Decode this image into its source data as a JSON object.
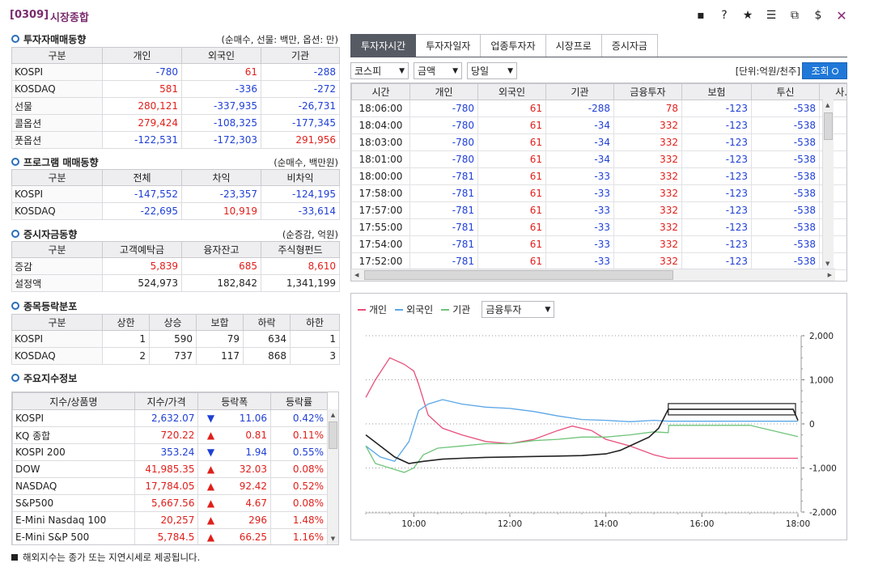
{
  "window": {
    "code": "[0309]",
    "title": "시장종합",
    "icons": [
      "chat-icon",
      "help-icon",
      "star-icon",
      "layout-icon",
      "copy-icon",
      "dollar-icon",
      "close-icon"
    ],
    "icon_glyphs": [
      "▪",
      "?",
      "★",
      "☰",
      "⧉",
      "$",
      "✕"
    ]
  },
  "investor": {
    "title": "투자자매매동향",
    "note": "(순매수, 선물: 백만, 옵션: 만)",
    "headers": [
      "구분",
      "개인",
      "외국인",
      "기관"
    ],
    "rows": [
      {
        "label": "KOSPI",
        "v": [
          "-780",
          "61",
          "-288"
        ]
      },
      {
        "label": "KOSDAQ",
        "v": [
          "581",
          "-336",
          "-272"
        ]
      },
      {
        "label": "선물",
        "v": [
          "280,121",
          "-337,935",
          "-26,731"
        ]
      },
      {
        "label": "콜옵션",
        "v": [
          "279,424",
          "-108,325",
          "-177,345"
        ]
      },
      {
        "label": "풋옵션",
        "v": [
          "-122,531",
          "-172,303",
          "291,956"
        ]
      }
    ]
  },
  "program": {
    "title": "프로그램 매매동향",
    "note": "(순매수, 백만원)",
    "headers": [
      "구분",
      "전체",
      "차익",
      "비차익"
    ],
    "rows": [
      {
        "label": "KOSPI",
        "v": [
          "-147,552",
          "-23,357",
          "-124,195"
        ]
      },
      {
        "label": "KOSDAQ",
        "v": [
          "-22,695",
          "10,919",
          "-33,614"
        ]
      }
    ]
  },
  "funds": {
    "title": "증시자금동향",
    "note": "(순증감, 억원)",
    "headers": [
      "구분",
      "고객예탁금",
      "융자잔고",
      "주식형펀드"
    ],
    "rows": [
      {
        "label": "증감",
        "v": [
          "5,839",
          "685",
          "8,610"
        ]
      },
      {
        "label": "설정액",
        "v": [
          "524,973",
          "182,842",
          "1,341,199"
        ]
      }
    ]
  },
  "breadth": {
    "title": "종목등락분포",
    "headers": [
      "구분",
      "상한",
      "상승",
      "보합",
      "하락",
      "하한"
    ],
    "rows": [
      {
        "label": "KOSPI",
        "v": [
          "1",
          "590",
          "79",
          "634",
          "1"
        ]
      },
      {
        "label": "KOSDAQ",
        "v": [
          "2",
          "737",
          "117",
          "868",
          "3"
        ]
      }
    ]
  },
  "indices": {
    "title": "주요지수정보",
    "headers": [
      "지수/상품명",
      "지수/가격",
      "등락폭",
      "등락률"
    ],
    "rows": [
      {
        "name": "KOSPI",
        "price": "2,632.07",
        "dir": "down",
        "chg": "11.06",
        "pct": "0.42%"
      },
      {
        "name": "KQ 종합",
        "price": "720.22",
        "dir": "up",
        "chg": "0.81",
        "pct": "0.11%"
      },
      {
        "name": "KOSPI 200",
        "price": "353.24",
        "dir": "down",
        "chg": "1.94",
        "pct": "0.55%"
      },
      {
        "name": "DOW",
        "price": "41,985.35",
        "dir": "up",
        "chg": "32.03",
        "pct": "0.08%"
      },
      {
        "name": "NASDAQ",
        "price": "17,784.05",
        "dir": "up",
        "chg": "92.42",
        "pct": "0.52%"
      },
      {
        "name": "S&P500",
        "price": "5,667.56",
        "dir": "up",
        "chg": "4.67",
        "pct": "0.08%"
      },
      {
        "name": "E-Mini Nasdaq 100",
        "price": "20,257",
        "dir": "up",
        "chg": "296",
        "pct": "1.48%"
      },
      {
        "name": "E-Mini S&P 500",
        "price": "5,784.5",
        "dir": "up",
        "chg": "66.25",
        "pct": "1.16%"
      }
    ],
    "footnote": "해외지수는 종가 또는 지연시세로 제공됩니다."
  },
  "tabs": [
    "투자자시간",
    "투자자일자",
    "업종투자자",
    "시장프로",
    "증시자금"
  ],
  "controls": {
    "market": "코스피",
    "measure": "금액",
    "period": "당일",
    "unit": "[단위:억원/천주]",
    "query": "조회"
  },
  "time_table": {
    "headers": [
      "시간",
      "개인",
      "외국인",
      "기관",
      "금융투자",
      "보험",
      "투신",
      "사..."
    ],
    "rows": [
      [
        "18:06:00",
        "-780",
        "61",
        "-288",
        "78",
        "-123",
        "-538"
      ],
      [
        "18:04:00",
        "-780",
        "61",
        "-34",
        "332",
        "-123",
        "-538"
      ],
      [
        "18:03:00",
        "-780",
        "61",
        "-34",
        "332",
        "-123",
        "-538"
      ],
      [
        "18:01:00",
        "-780",
        "61",
        "-34",
        "332",
        "-123",
        "-538"
      ],
      [
        "18:00:00",
        "-781",
        "61",
        "-33",
        "332",
        "-123",
        "-538"
      ],
      [
        "17:58:00",
        "-781",
        "61",
        "-33",
        "332",
        "-123",
        "-538"
      ],
      [
        "17:57:00",
        "-781",
        "61",
        "-33",
        "332",
        "-123",
        "-538"
      ],
      [
        "17:55:00",
        "-781",
        "61",
        "-33",
        "332",
        "-123",
        "-538"
      ],
      [
        "17:54:00",
        "-781",
        "61",
        "-33",
        "332",
        "-123",
        "-538"
      ],
      [
        "17:52:00",
        "-781",
        "61",
        "-33",
        "332",
        "-123",
        "-538"
      ]
    ]
  },
  "chart_legend": {
    "items": [
      {
        "name": "개인",
        "color": "#e8507c"
      },
      {
        "name": "외국인",
        "color": "#5aa6e6"
      },
      {
        "name": "기관",
        "color": "#6fc47a"
      }
    ],
    "select": "금융투자"
  },
  "chart_data": {
    "type": "line",
    "x_ticks": [
      "10:00",
      "12:00",
      "14:00",
      "16:00",
      "18:00"
    ],
    "y_ticks": [
      "2,000",
      "1,000",
      "0",
      "-1,000",
      "-2,000"
    ],
    "xlim": [
      9.0,
      18.0
    ],
    "ylim": [
      -2000,
      2000
    ],
    "series": [
      {
        "name": "개인",
        "color": "#e8507c",
        "x": [
          9.0,
          9.2,
          9.5,
          9.8,
          10.0,
          10.1,
          10.3,
          10.6,
          11.0,
          11.5,
          12.0,
          12.5,
          13.0,
          13.3,
          13.7,
          14.0,
          14.5,
          15.0,
          15.3,
          16.0,
          17.0,
          18.0
        ],
        "y": [
          600,
          1000,
          1500,
          1350,
          1200,
          900,
          200,
          -100,
          -250,
          -400,
          -450,
          -350,
          -150,
          -50,
          -150,
          -350,
          -500,
          -700,
          -780,
          -780,
          -780,
          -780
        ]
      },
      {
        "name": "외국인",
        "color": "#5aa6e6",
        "x": [
          9.0,
          9.3,
          9.6,
          9.9,
          10.1,
          10.3,
          10.6,
          11.0,
          11.5,
          12.0,
          12.5,
          13.0,
          13.5,
          14.0,
          14.5,
          15.0,
          15.3,
          16.0,
          17.0,
          18.0
        ],
        "y": [
          -500,
          -750,
          -850,
          -400,
          300,
          450,
          550,
          450,
          380,
          350,
          280,
          180,
          100,
          80,
          50,
          80,
          61,
          61,
          61,
          61
        ]
      },
      {
        "name": "기관",
        "color": "#6fc47a",
        "x": [
          9.0,
          9.2,
          9.5,
          9.8,
          10.0,
          10.2,
          10.5,
          11.0,
          11.5,
          12.0,
          12.5,
          13.0,
          13.5,
          14.0,
          14.5,
          15.0,
          15.3,
          15.31,
          16.0,
          17.0,
          18.0
        ],
        "y": [
          -500,
          -900,
          -1000,
          -1100,
          -1000,
          -700,
          -550,
          -500,
          -450,
          -450,
          -380,
          -350,
          -300,
          -300,
          -250,
          -180,
          -200,
          -33,
          -33,
          -33,
          -288
        ]
      },
      {
        "name": "금융투자",
        "color": "#222222",
        "x": [
          9.0,
          9.3,
          9.6,
          9.9,
          10.2,
          10.6,
          11.0,
          11.5,
          12.0,
          12.5,
          13.0,
          13.5,
          14.0,
          14.3,
          14.6,
          14.9,
          15.1,
          15.3,
          15.31,
          16.0,
          17.0,
          17.9,
          18.0
        ],
        "y": [
          -250,
          -500,
          -750,
          -900,
          -850,
          -800,
          -780,
          -760,
          -750,
          -740,
          -730,
          -720,
          -680,
          -600,
          -450,
          -300,
          -100,
          332,
          332,
          332,
          332,
          332,
          78
        ]
      }
    ]
  }
}
